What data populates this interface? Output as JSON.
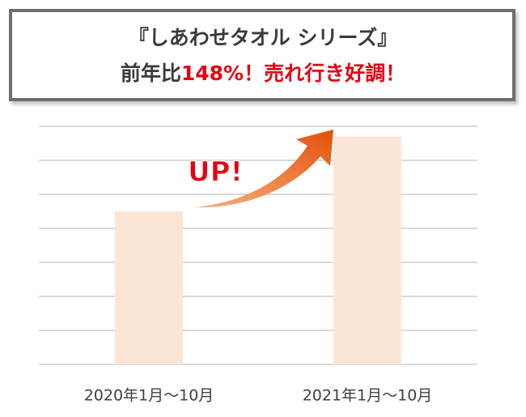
{
  "chart_data": {
    "type": "bar",
    "title": "『しあわせタオル シリーズ』",
    "headline": {
      "prefix": "前年比",
      "highlight": "148%！売れ行き好調！"
    },
    "annotation": "UP!",
    "categories": [
      "2020年1月～10月",
      "2021年1月～10月"
    ],
    "values": [
      4.5,
      6.7
    ],
    "color": "#fde5d6",
    "ylim": [
      0,
      7
    ],
    "yticks": [
      0,
      1,
      2,
      3,
      4,
      5,
      6,
      7
    ],
    "grid": true
  }
}
